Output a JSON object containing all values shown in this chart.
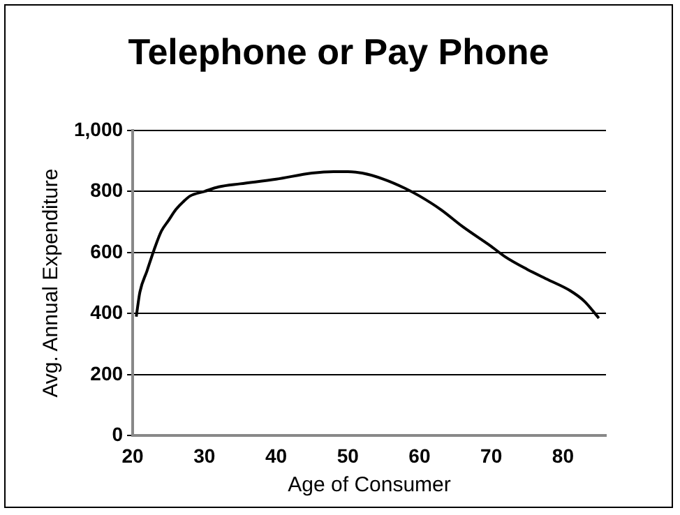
{
  "chart_data": {
    "type": "line",
    "title": "Telephone or Pay Phone",
    "xlabel": "Age of Consumer",
    "ylabel": "Avg. Annual Expenditure",
    "x": [
      20.5,
      21,
      22,
      23,
      24,
      25,
      26,
      27,
      28,
      30,
      32,
      35,
      40,
      45,
      48,
      50,
      52,
      55,
      58,
      60,
      63,
      66,
      70,
      72,
      75,
      78,
      81,
      83,
      85
    ],
    "series": [
      {
        "color": "#000000",
        "values": [
          390,
          470,
          540,
          610,
          670,
          705,
          740,
          765,
          785,
          800,
          815,
          825,
          840,
          860,
          865,
          865,
          860,
          840,
          810,
          785,
          740,
          685,
          620,
          585,
          545,
          510,
          475,
          440,
          385
        ]
      }
    ],
    "xlim": [
      20,
      86
    ],
    "xticks": [
      20,
      30,
      40,
      50,
      60,
      70,
      80
    ],
    "ylim": [
      0,
      1000
    ],
    "yticks": [
      0,
      200,
      400,
      600,
      800,
      {
        "value": 1000,
        "label": "1,000"
      }
    ],
    "grid": "y",
    "legend": false,
    "marker": "none",
    "line_style": "solid"
  }
}
